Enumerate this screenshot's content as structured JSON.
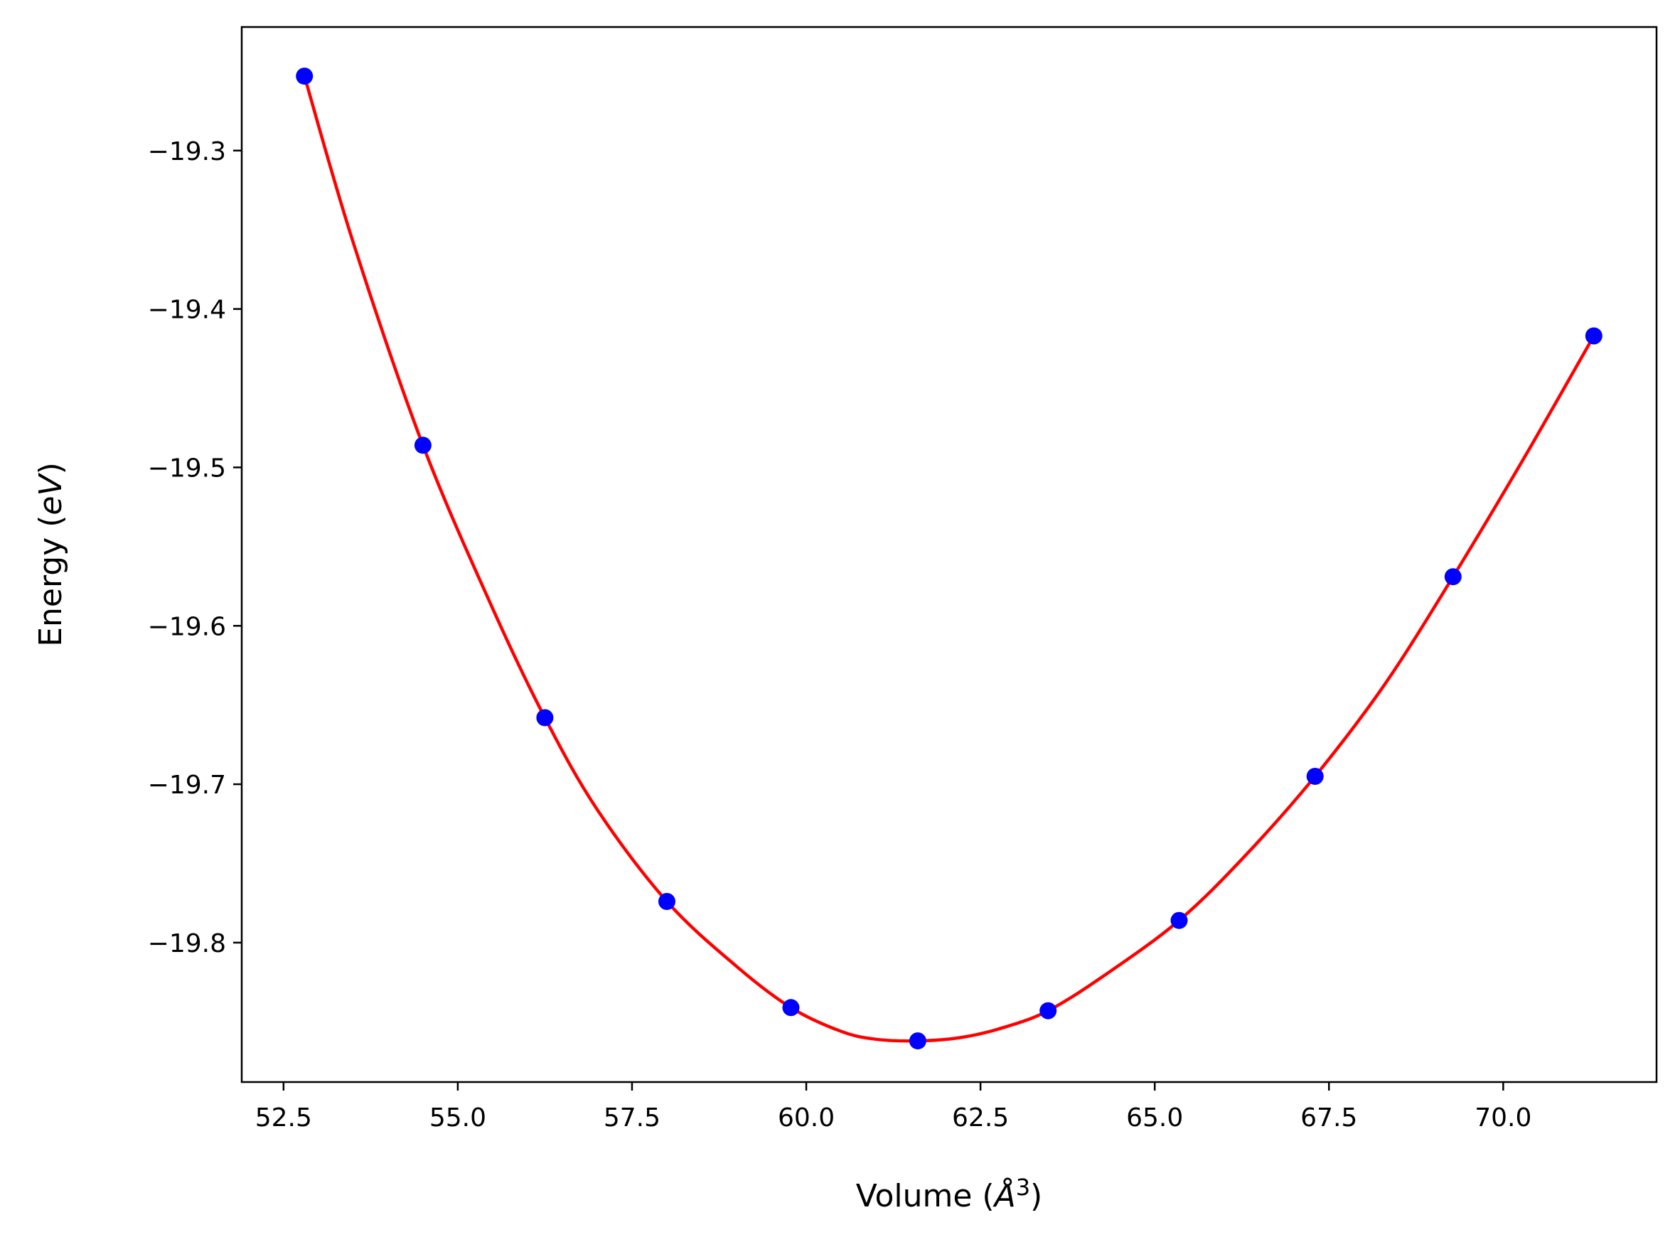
{
  "chart_data": {
    "type": "line",
    "title": "",
    "xlabel_parts": {
      "prefix": "Volume (",
      "unit": "Å",
      "sup": "3",
      "suffix": ")"
    },
    "ylabel_parts": {
      "prefix": "Energy (",
      "unit": "eV",
      "suffix": ")"
    },
    "xlim": [
      51.9,
      72.2
    ],
    "ylim": [
      -19.888,
      -19.222
    ],
    "xticks": [
      52.5,
      55.0,
      57.5,
      60.0,
      62.5,
      65.0,
      67.5,
      70.0
    ],
    "xtick_labels": [
      "52.5",
      "55.0",
      "57.5",
      "60.0",
      "62.5",
      "65.0",
      "67.5",
      "70.0"
    ],
    "yticks": [
      -19.3,
      -19.4,
      -19.5,
      -19.6,
      -19.7,
      -19.8
    ],
    "ytick_labels": [
      "−19.3",
      "−19.4",
      "−19.5",
      "−19.6",
      "−19.7",
      "−19.8"
    ],
    "grid": false,
    "series": [
      {
        "style": "markers",
        "color": "#0000ff",
        "x": [
          52.8,
          54.5,
          56.25,
          58.0,
          59.78,
          61.6,
          63.47,
          65.35,
          67.3,
          69.28,
          71.3
        ],
        "y": [
          -19.253,
          -19.486,
          -19.658,
          -19.774,
          -19.841,
          -19.862,
          -19.843,
          -19.786,
          -19.695,
          -19.569,
          -19.417
        ]
      },
      {
        "style": "line",
        "color": "#ff0000",
        "x": [
          52.8,
          53.5,
          54.5,
          55.5,
          56.25,
          57.0,
          58.0,
          59.0,
          59.78,
          60.5,
          61.0,
          61.6,
          62.2,
          62.8,
          63.47,
          64.3,
          65.35,
          66.3,
          67.3,
          68.3,
          69.28,
          70.3,
          71.3
        ],
        "y": [
          -19.253,
          -19.358,
          -19.486,
          -19.589,
          -19.658,
          -19.716,
          -19.774,
          -19.815,
          -19.841,
          -19.856,
          -19.861,
          -19.862,
          -19.86,
          -19.854,
          -19.843,
          -19.82,
          -19.786,
          -19.745,
          -19.695,
          -19.637,
          -19.569,
          -19.494,
          -19.417
        ]
      }
    ],
    "colors": {
      "fit_line": "#ff0000",
      "points": "#0000ff",
      "axes": "#000000"
    }
  }
}
